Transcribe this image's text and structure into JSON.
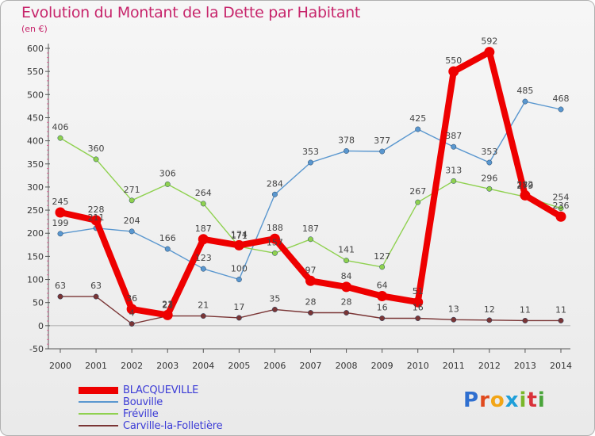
{
  "header": {
    "title": "Evolution du Montant de la Dette par Habitant",
    "unit": "(en €)"
  },
  "brand": {
    "text": "Proxiti",
    "letter_colors": [
      "#2f6fd0",
      "#e04a1e",
      "#f2a516",
      "#1f9fd9",
      "#7ab72a",
      "#d9323a",
      "#4aa43a"
    ]
  },
  "chart_data": {
    "type": "line",
    "title": "Evolution du Montant de la Dette par Habitant",
    "subtitle": "(en €)",
    "xlabel": "",
    "ylabel": "",
    "x": [
      2000,
      2001,
      2002,
      2003,
      2004,
      2005,
      2006,
      2007,
      2008,
      2009,
      2010,
      2011,
      2012,
      2013,
      2014
    ],
    "ylim": [
      -50,
      600
    ],
    "yticks": [
      -50,
      0,
      50,
      100,
      150,
      200,
      250,
      300,
      350,
      400,
      450,
      500,
      550,
      600
    ],
    "grid": false,
    "legend_position": "bottom-left",
    "series": [
      {
        "name": "BLACQUEVILLE",
        "color": "#ee0000",
        "legend_text_color": "#3b3bd6",
        "emphasis": "thick",
        "values": [
          245,
          228,
          36,
          23,
          187,
          174,
          188,
          97,
          84,
          64,
          51,
          550,
          592,
          282,
          236
        ],
        "labels": [
          "245",
          "228",
          "36",
          "23",
          "187",
          "174",
          "188",
          "97",
          "84",
          "64",
          "51",
          "550",
          "592",
          "282",
          "236"
        ]
      },
      {
        "name": "Bouville",
        "color": "#5a97cf",
        "legend_text_color": "#3b3bd6",
        "emphasis": "normal",
        "values": [
          199,
          211,
          204,
          166,
          123,
          100,
          284,
          353,
          378,
          377,
          425,
          387,
          353,
          485,
          468
        ],
        "labels": [
          "199",
          "211",
          "204",
          "166",
          "123",
          "100",
          "284",
          "353",
          "378",
          "377",
          "425",
          "387",
          "353",
          "485",
          "468"
        ]
      },
      {
        "name": "Fréville",
        "color": "#8fd14f",
        "legend_text_color": "#3b3bd6",
        "emphasis": "normal",
        "values": [
          406,
          360,
          271,
          306,
          264,
          171,
          157,
          187,
          141,
          127,
          267,
          313,
          296,
          279,
          254
        ],
        "labels": [
          "406",
          "360",
          "271",
          "306",
          "264",
          "171",
          "157",
          "187",
          "141",
          "127",
          "267",
          "313",
          "296",
          "279",
          "254"
        ]
      },
      {
        "name": "Carville-la-Folletière",
        "color": "#7a3535",
        "legend_text_color": "#3b3bd6",
        "emphasis": "normal",
        "values": [
          63,
          63,
          4,
          21,
          21,
          17,
          35,
          28,
          28,
          16,
          16,
          13,
          12,
          11,
          11
        ],
        "labels": [
          "63",
          "63",
          "4",
          "21",
          "21",
          "17",
          "35",
          "28",
          "28",
          "16",
          "16",
          "13",
          "12",
          "11",
          "11"
        ]
      }
    ]
  }
}
